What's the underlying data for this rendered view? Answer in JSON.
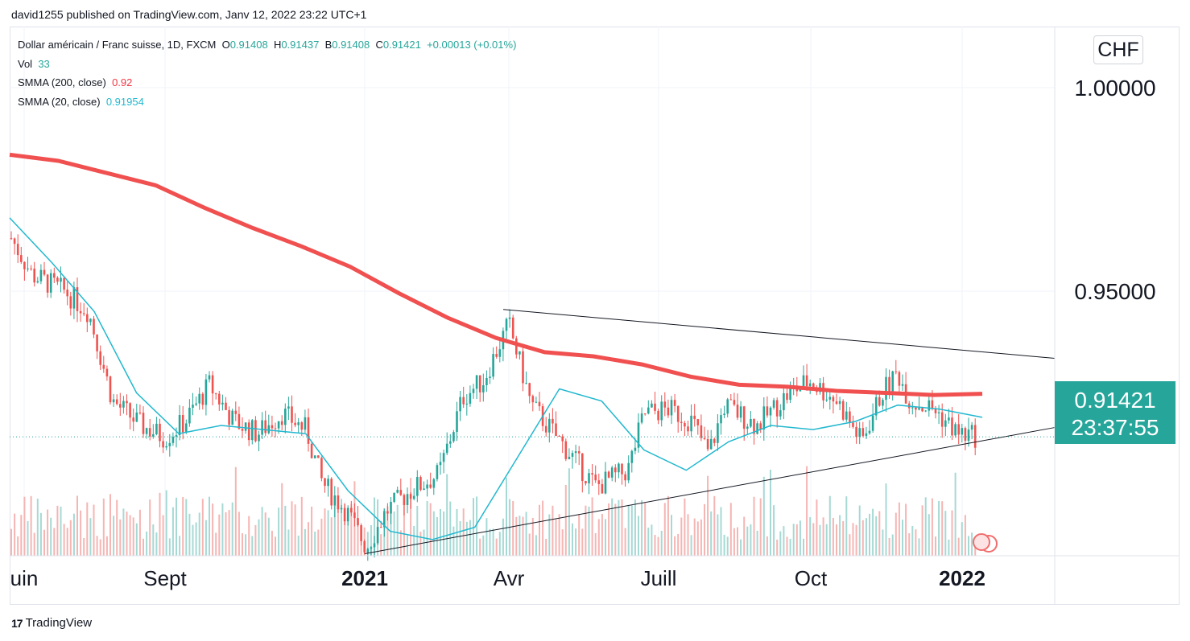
{
  "publisher": "david1255 published on TradingView.com, Janv 12, 2022 23:22 UTC+1",
  "legend": {
    "symbol": "Dollar américain / Franc suisse, 1D, FXCM",
    "ohlc": [
      {
        "label": "O",
        "value": "0.91408"
      },
      {
        "label": "H",
        "value": "0.91437"
      },
      {
        "label": "B",
        "value": "0.91408"
      },
      {
        "label": "C",
        "value": "0.91421"
      }
    ],
    "change": "+0.00013 (+0.01%)",
    "vol_label": "Vol",
    "vol_value": "33",
    "smma200_label": "SMMA (200, close)",
    "smma200_value": "0.92",
    "smma20_label": "SMMA (20, close)",
    "smma20_value": "0.91954"
  },
  "currency": "CHF",
  "current_price": "0.91421",
  "countdown": "23:37:55",
  "brand": "TradingView",
  "colors": {
    "up": "#26a69a",
    "down": "#ef5350",
    "smma200": "#f0504f",
    "smma20": "#22b8cf",
    "trendline": "#131722"
  },
  "chart_data": {
    "type": "candlestick",
    "ylim": [
      0.885,
      1.015
    ],
    "y_ticks": [
      "1.00000",
      "0.95000"
    ],
    "x_ticks": [
      "uin",
      "Sept",
      "2021",
      "Avr",
      "Juill",
      "Oct",
      "2022"
    ],
    "x_ticks_bold": [
      "2021",
      "2022"
    ],
    "smma200": [
      0.9835,
      0.982,
      0.979,
      0.976,
      0.9705,
      0.9655,
      0.961,
      0.956,
      0.9495,
      0.9435,
      0.9385,
      0.935,
      0.934,
      0.932,
      0.929,
      0.927,
      0.9265,
      0.9255,
      0.925,
      0.9245,
      0.9248
    ],
    "smma20": [
      0.968,
      0.957,
      0.945,
      0.925,
      0.915,
      0.917,
      0.916,
      0.915,
      0.901,
      0.891,
      0.889,
      0.892,
      0.909,
      0.926,
      0.923,
      0.911,
      0.906,
      0.913,
      0.917,
      0.916,
      0.918,
      0.922,
      0.921,
      0.919
    ],
    "trendline_upper": [
      [
        0.9455,
        0
      ],
      [
        0.9335,
        1
      ]
    ],
    "trendline_lower": [
      [
        0.8855,
        0
      ],
      [
        0.9165,
        1
      ]
    ]
  }
}
